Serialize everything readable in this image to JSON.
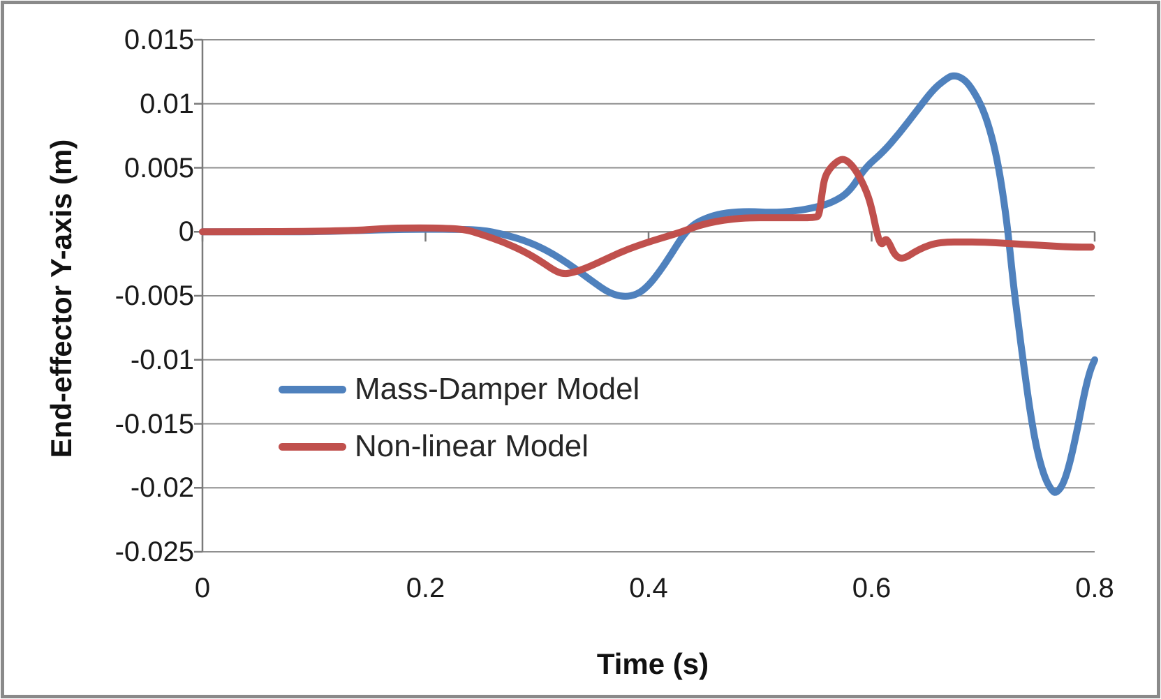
{
  "figure": {
    "border_color": "#8a8a8a",
    "background_color": "#ffffff",
    "gridline_color": "#8f8f8f",
    "axis_color": "#7a7a7a"
  },
  "chart_data": {
    "type": "line",
    "title": "",
    "xlabel": "Time (s)",
    "ylabel": "End-effector Y-axis (m)",
    "xlim": [
      0,
      0.8
    ],
    "ylim": [
      -0.025,
      0.015
    ],
    "grid": "horizontal gridlines on, every 0.005",
    "legend_position": "inside plot, left-middle, no border",
    "x_ticks": [
      {
        "value": 0,
        "label": "0"
      },
      {
        "value": 0.2,
        "label": "0.2"
      },
      {
        "value": 0.4,
        "label": "0.4"
      },
      {
        "value": 0.6,
        "label": "0.6"
      },
      {
        "value": 0.8,
        "label": "0.8"
      }
    ],
    "y_ticks": [
      {
        "value": 0.015,
        "label": "0.015"
      },
      {
        "value": 0.01,
        "label": "0.01"
      },
      {
        "value": 0.005,
        "label": "0.005"
      },
      {
        "value": 0,
        "label": "0"
      },
      {
        "value": -0.005,
        "label": "-0.005"
      },
      {
        "value": -0.01,
        "label": "-0.01"
      },
      {
        "value": -0.015,
        "label": "-0.015"
      },
      {
        "value": -0.02,
        "label": "-0.02"
      },
      {
        "value": -0.025,
        "label": "-0.025"
      }
    ],
    "series": [
      {
        "name": "Mass-Damper Model",
        "color": "#4f81bd",
        "points": [
          [
            0,
            0
          ],
          [
            0.05,
            0
          ],
          [
            0.1,
            0
          ],
          [
            0.14,
            0.0001
          ],
          [
            0.18,
            0.0002
          ],
          [
            0.22,
            0.0002
          ],
          [
            0.25,
            0.00015
          ],
          [
            0.27,
            -0.0002
          ],
          [
            0.29,
            -0.0007
          ],
          [
            0.31,
            -0.0015
          ],
          [
            0.33,
            -0.0026
          ],
          [
            0.35,
            -0.0039
          ],
          [
            0.365,
            -0.0048
          ],
          [
            0.378,
            -0.0051
          ],
          [
            0.39,
            -0.0049
          ],
          [
            0.4,
            -0.0042
          ],
          [
            0.41,
            -0.0031
          ],
          [
            0.42,
            -0.0018
          ],
          [
            0.43,
            -0.0004
          ],
          [
            0.44,
            0.0006
          ],
          [
            0.455,
            0.0012
          ],
          [
            0.47,
            0.0015
          ],
          [
            0.49,
            0.0016
          ],
          [
            0.51,
            0.0015
          ],
          [
            0.53,
            0.0016
          ],
          [
            0.55,
            0.0019
          ],
          [
            0.565,
            0.0023
          ],
          [
            0.58,
            0.0031
          ],
          [
            0.594,
            0.005
          ],
          [
            0.61,
            0.0062
          ],
          [
            0.625,
            0.0077
          ],
          [
            0.64,
            0.0094
          ],
          [
            0.655,
            0.0111
          ],
          [
            0.666,
            0.0119
          ],
          [
            0.673,
            0.01225
          ],
          [
            0.682,
            0.012
          ],
          [
            0.69,
            0.0112
          ],
          [
            0.7,
            0.0096
          ],
          [
            0.708,
            0.0074
          ],
          [
            0.714,
            0.005
          ],
          [
            0.719,
            0.0022
          ],
          [
            0.7225,
            -0.0002
          ],
          [
            0.727,
            -0.004
          ],
          [
            0.7315,
            -0.0072
          ],
          [
            0.736,
            -0.0102
          ],
          [
            0.742,
            -0.014
          ],
          [
            0.748,
            -0.017
          ],
          [
            0.755,
            -0.0192
          ],
          [
            0.762,
            -0.0203
          ],
          [
            0.766,
            -0.0204
          ],
          [
            0.772,
            -0.0197
          ],
          [
            0.778,
            -0.018
          ],
          [
            0.785,
            -0.0152
          ],
          [
            0.791,
            -0.0125
          ],
          [
            0.796,
            -0.0108
          ],
          [
            0.8,
            -0.01
          ]
        ]
      },
      {
        "name": "Non-linear Model",
        "color": "#c0504d",
        "points": [
          [
            0,
            0
          ],
          [
            0.07,
            0
          ],
          [
            0.14,
            0.0001
          ],
          [
            0.16,
            0.00025
          ],
          [
            0.18,
            0.0003
          ],
          [
            0.21,
            0.0003
          ],
          [
            0.235,
            0.0002
          ],
          [
            0.25,
            -0.0002
          ],
          [
            0.27,
            -0.0008
          ],
          [
            0.29,
            -0.0016
          ],
          [
            0.305,
            -0.0024
          ],
          [
            0.315,
            -0.003
          ],
          [
            0.323,
            -0.0033
          ],
          [
            0.332,
            -0.0032
          ],
          [
            0.345,
            -0.0028
          ],
          [
            0.36,
            -0.0022
          ],
          [
            0.38,
            -0.0014
          ],
          [
            0.4,
            -0.0008
          ],
          [
            0.415,
            -0.0004
          ],
          [
            0.43,
            0.0
          ],
          [
            0.445,
            0.0005
          ],
          [
            0.46,
            0.0008
          ],
          [
            0.475,
            0.001
          ],
          [
            0.49,
            0.0011
          ],
          [
            0.51,
            0.0011
          ],
          [
            0.53,
            0.0011
          ],
          [
            0.55,
            0.0011
          ],
          [
            0.553,
            0.0013
          ],
          [
            0.5555,
            0.003
          ],
          [
            0.558,
            0.0043
          ],
          [
            0.563,
            0.005
          ],
          [
            0.569,
            0.0055
          ],
          [
            0.574,
            0.0057
          ],
          [
            0.579,
            0.0055
          ],
          [
            0.585,
            0.0049
          ],
          [
            0.591,
            0.004
          ],
          [
            0.597,
            0.0028
          ],
          [
            0.601,
            0.0015
          ],
          [
            0.604,
            0.0002
          ],
          [
            0.607,
            -0.0008
          ],
          [
            0.61,
            -0.001
          ],
          [
            0.6125,
            -0.0005
          ],
          [
            0.616,
            -0.0009
          ],
          [
            0.62,
            -0.0017
          ],
          [
            0.625,
            -0.0021
          ],
          [
            0.631,
            -0.002
          ],
          [
            0.638,
            -0.0016
          ],
          [
            0.647,
            -0.0012
          ],
          [
            0.657,
            -0.0009
          ],
          [
            0.668,
            -0.0008
          ],
          [
            0.68,
            -0.0008
          ],
          [
            0.7,
            -0.0008
          ],
          [
            0.72,
            -0.0009
          ],
          [
            0.74,
            -0.001
          ],
          [
            0.76,
            -0.0011
          ],
          [
            0.78,
            -0.0012
          ],
          [
            0.797,
            -0.0012
          ]
        ]
      }
    ]
  }
}
